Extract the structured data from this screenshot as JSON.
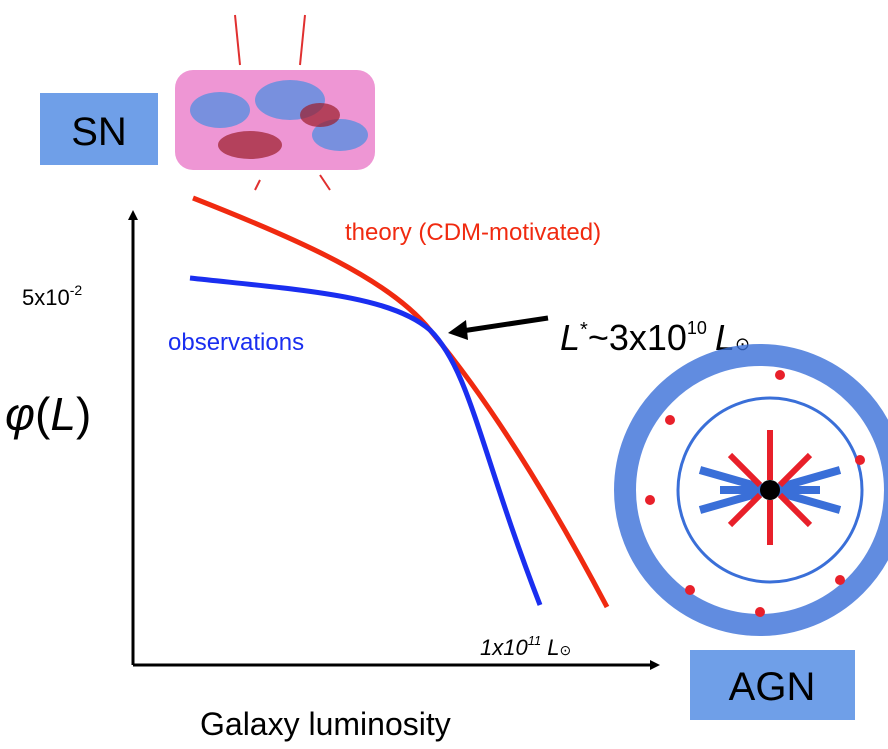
{
  "labels": {
    "sn": "SN",
    "agn": "AGN",
    "theory": "theory (CDM-motivated)",
    "observations": "observations",
    "y_tick": {
      "base": "5x10",
      "exp": "-2"
    },
    "y_axis": {
      "phi": "φ",
      "open": "(",
      "var": "L",
      "close": ")"
    },
    "l_star": {
      "var": "L",
      "star": "*",
      "mid": "~3x10",
      "exp": "10",
      "unit": "L",
      "sun": "⊙"
    },
    "x_tick": {
      "base": "1x10",
      "exp": "11",
      "unit": "L",
      "sun": "⊙"
    },
    "x_axis": "Galaxy luminosity"
  }
}
